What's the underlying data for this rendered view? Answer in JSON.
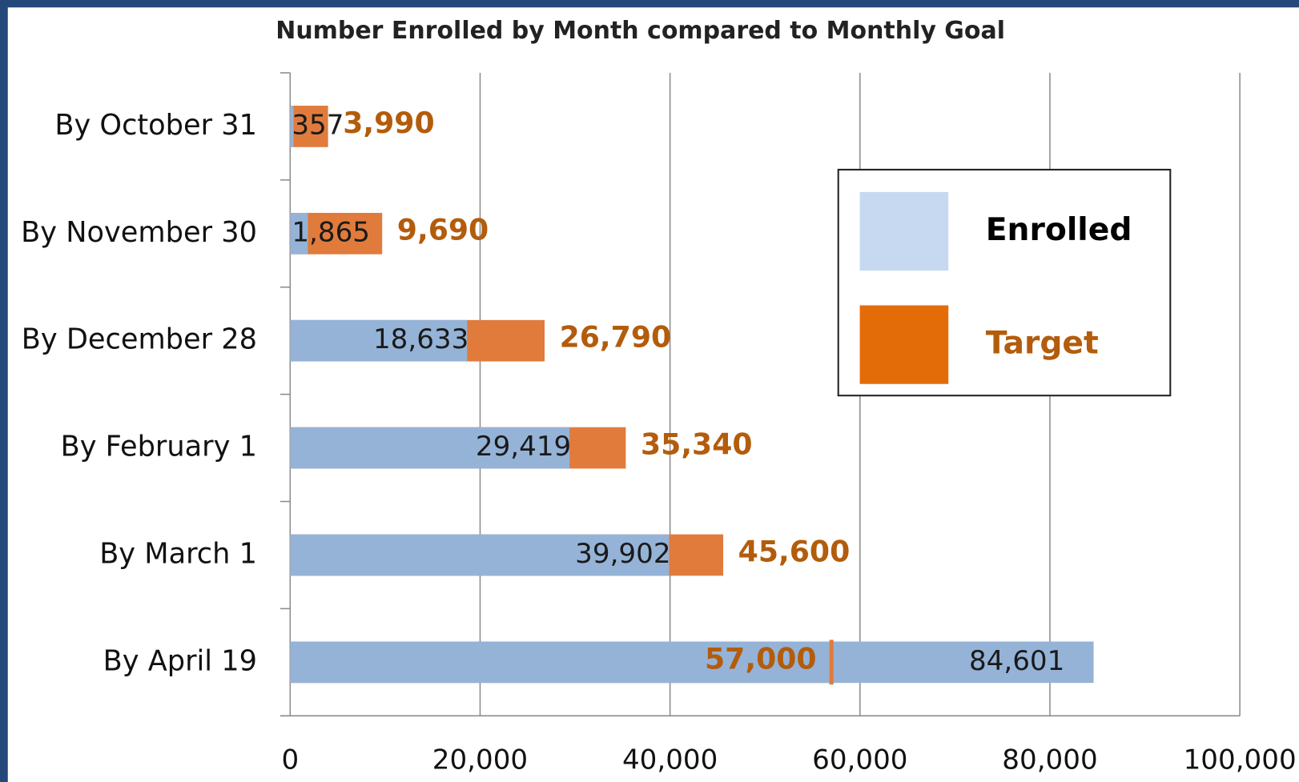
{
  "chart_data": {
    "type": "bar",
    "orientation": "horizontal",
    "overlap": true,
    "title": "Number Enrolled by Month compared to Monthly Goal",
    "categories": [
      "By October 31",
      "By November 30",
      "By December 28",
      "By February 1",
      "By March 1",
      "By April 19"
    ],
    "series": [
      {
        "name": "Enrolled",
        "color": "#95b3d7",
        "legend_color": "#c6d9f1",
        "label_color": "#1a1a1a",
        "values": [
          357,
          1865,
          18633,
          29419,
          39902,
          84601
        ],
        "value_labels": [
          "357",
          "1,865",
          "18,633",
          "29,419",
          "39,902",
          "84,601"
        ]
      },
      {
        "name": "Target",
        "color": "#e07b3c",
        "legend_color": "#e36c09",
        "label_color": "#b35c0c",
        "values": [
          3990,
          9690,
          26790,
          35340,
          45600,
          57000
        ],
        "value_labels": [
          "3,990",
          "9,690",
          "26,790",
          "35,340",
          "45,600",
          "57,000"
        ]
      }
    ],
    "xlim": [
      0,
      100000
    ],
    "xticks": [
      0,
      {
        "value": 20000,
        "label": "20,000"
      },
      {
        "value": 40000,
        "label": "40,000"
      },
      {
        "value": 60000,
        "label": "60,000"
      },
      {
        "value": 80000,
        "label": "80,000"
      },
      {
        "value": 100000,
        "label": "100,000"
      }
    ],
    "grid": true,
    "legend": "upper right"
  }
}
